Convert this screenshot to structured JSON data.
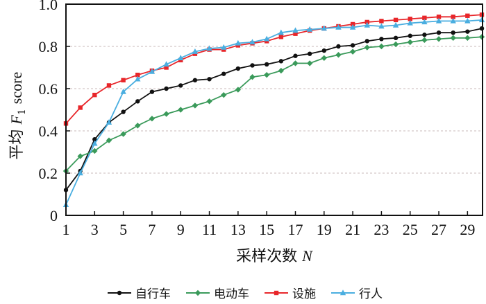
{
  "chart_data": {
    "type": "line",
    "title": "",
    "xlabel": "采样次数",
    "xlabel_var": "N",
    "ylabel": "平均",
    "ylabel_var": "F",
    "ylabel_sub": "1",
    "ylabel_suffix": "score",
    "xlim": [
      1,
      30
    ],
    "ylim": [
      0,
      1.0
    ],
    "xticks": [
      "1",
      "3",
      "5",
      "7",
      "9",
      "11",
      "13",
      "15",
      "17",
      "19",
      "21",
      "23",
      "25",
      "27",
      "29"
    ],
    "yticks": [
      "0",
      "0.2",
      "0.4",
      "0.6",
      "0.8",
      "1.0"
    ],
    "grid": "horizontal dashed",
    "legend_position": "bottom",
    "x": [
      1,
      2,
      3,
      4,
      5,
      6,
      7,
      8,
      9,
      10,
      11,
      12,
      13,
      14,
      15,
      16,
      17,
      18,
      19,
      20,
      21,
      22,
      23,
      24,
      25,
      26,
      27,
      28,
      29,
      30
    ],
    "series": [
      {
        "name": "自行车",
        "color": "#111111",
        "marker": "circle",
        "values": [
          0.12,
          0.21,
          0.36,
          0.44,
          0.49,
          0.54,
          0.585,
          0.6,
          0.615,
          0.64,
          0.645,
          0.67,
          0.695,
          0.71,
          0.715,
          0.73,
          0.755,
          0.765,
          0.78,
          0.8,
          0.805,
          0.825,
          0.835,
          0.84,
          0.85,
          0.855,
          0.865,
          0.865,
          0.87,
          0.885
        ]
      },
      {
        "name": "电动车",
        "color": "#3a9a5a",
        "marker": "diamond",
        "values": [
          0.21,
          0.28,
          0.305,
          0.355,
          0.385,
          0.425,
          0.458,
          0.48,
          0.5,
          0.52,
          0.54,
          0.57,
          0.595,
          0.655,
          0.665,
          0.685,
          0.72,
          0.72,
          0.745,
          0.76,
          0.775,
          0.795,
          0.8,
          0.81,
          0.82,
          0.83,
          0.835,
          0.84,
          0.84,
          0.845
        ]
      },
      {
        "name": "设施",
        "color": "#e8262a",
        "marker": "square",
        "values": [
          0.435,
          0.51,
          0.57,
          0.615,
          0.64,
          0.665,
          0.685,
          0.7,
          0.735,
          0.765,
          0.785,
          0.785,
          0.805,
          0.815,
          0.825,
          0.845,
          0.86,
          0.875,
          0.885,
          0.895,
          0.905,
          0.915,
          0.92,
          0.925,
          0.93,
          0.935,
          0.94,
          0.94,
          0.945,
          0.95
        ]
      },
      {
        "name": "行人",
        "color": "#4aaee0",
        "marker": "triangle",
        "values": [
          0.05,
          0.2,
          0.34,
          0.44,
          0.585,
          0.645,
          0.68,
          0.715,
          0.745,
          0.775,
          0.79,
          0.795,
          0.815,
          0.82,
          0.835,
          0.865,
          0.875,
          0.88,
          0.885,
          0.89,
          0.89,
          0.9,
          0.895,
          0.9,
          0.91,
          0.915,
          0.92,
          0.92,
          0.92,
          0.925
        ]
      }
    ]
  }
}
